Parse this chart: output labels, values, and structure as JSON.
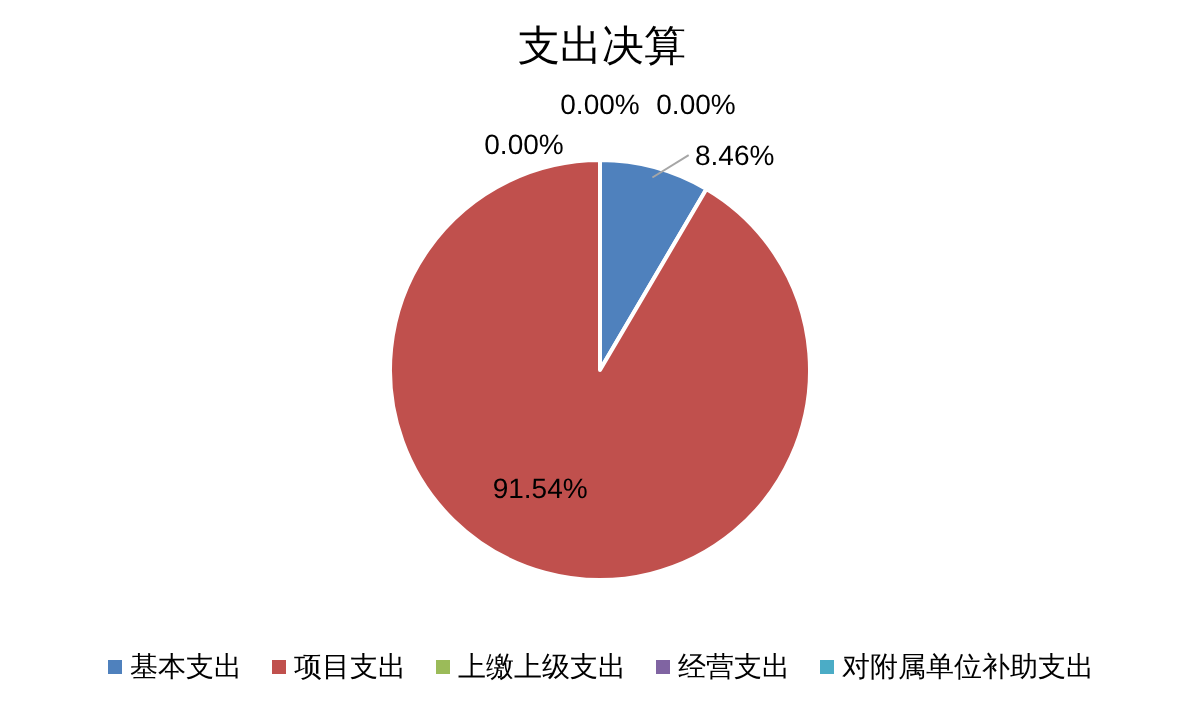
{
  "chart_data": {
    "type": "pie",
    "title": "支出决算",
    "categories": [
      "基本支出",
      "项目支出",
      "上缴上级支出",
      "经营支出",
      "对附属单位补助支出"
    ],
    "values": [
      8.46,
      91.54,
      0,
      0,
      0
    ],
    "colors": [
      "#4f81bd",
      "#c0504d",
      "#9bbb59",
      "#8064a2",
      "#4bacc6"
    ],
    "value_labels": [
      "8.46%",
      "91.54%",
      "0.00%",
      "0.00%",
      "0.00%"
    ],
    "legend": "bottom"
  }
}
